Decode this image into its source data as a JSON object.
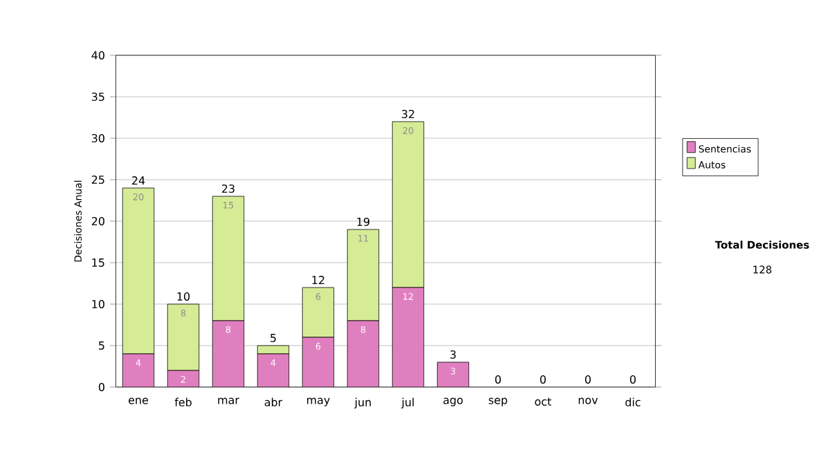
{
  "chart_data": {
    "type": "bar",
    "stacked": true,
    "ylabel": "Decisiones Anual",
    "categories": [
      "ene",
      "feb",
      "mar",
      "abr",
      "may",
      "jun",
      "jul",
      "ago",
      "sep",
      "oct",
      "nov",
      "dic"
    ],
    "series": [
      {
        "name": "Sentencias",
        "color": "#e07fbf",
        "values": [
          4,
          2,
          8,
          4,
          6,
          8,
          12,
          3,
          0,
          0,
          0,
          0
        ],
        "value_labels": [
          "4",
          "2",
          "8",
          "4",
          "6",
          "8",
          "12",
          "3",
          null,
          null,
          null,
          null
        ]
      },
      {
        "name": "Autos",
        "color": "#d6eb95",
        "values": [
          20,
          8,
          15,
          1,
          6,
          11,
          20,
          0,
          0,
          0,
          0,
          0
        ],
        "value_labels": [
          "20",
          "8",
          "15",
          null,
          "6",
          "11",
          "20",
          null,
          null,
          null,
          null,
          null
        ]
      }
    ],
    "totals": [
      "24",
      "10",
      "23",
      "5",
      "12",
      "19",
      "32",
      "3",
      "0",
      "0",
      "0",
      "0"
    ],
    "ylim": [
      0,
      40
    ],
    "yticks": [
      0,
      5,
      10,
      15,
      20,
      25,
      30,
      35,
      40
    ],
    "grid": "y",
    "legend": "right",
    "annotations": [
      "Total Decisiones",
      "128"
    ]
  }
}
